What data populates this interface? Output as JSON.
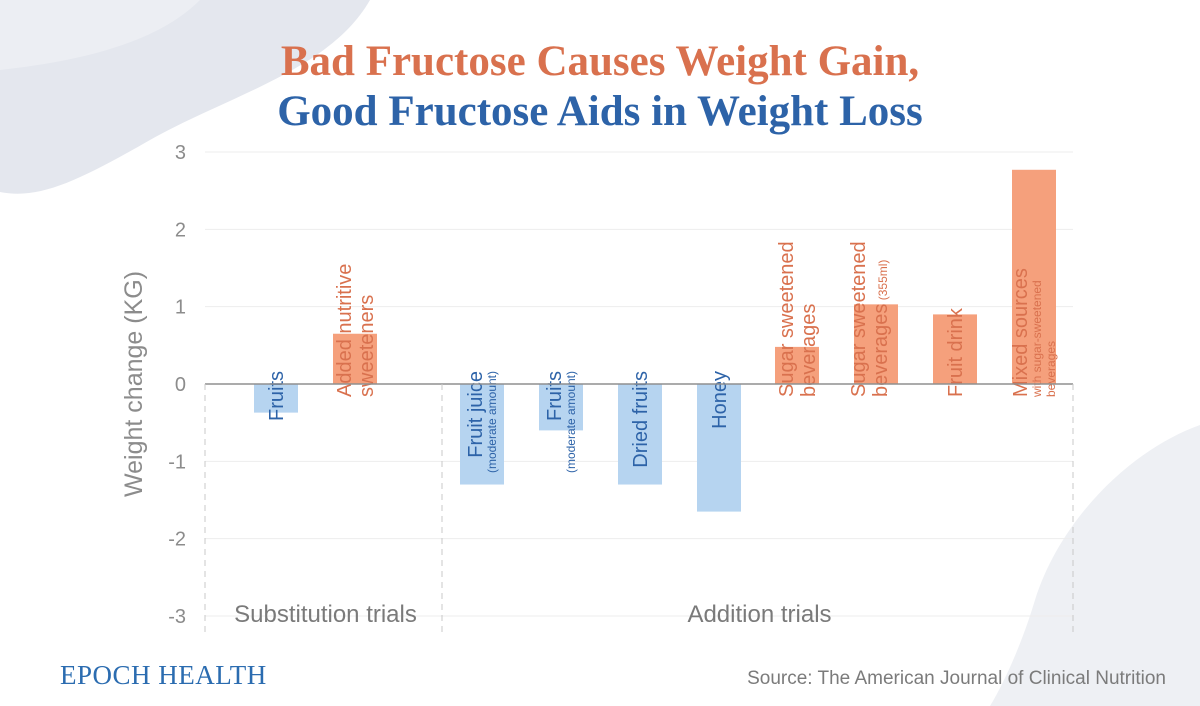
{
  "header": {
    "title_line1": "Bad Fructose Causes Weight Gain,",
    "title_line2": "Good Fructose Aids in Weight Loss"
  },
  "footer": {
    "brand": "EPOCH HEALTH",
    "source": "Source: The American Journal of Clinical Nutrition"
  },
  "colors": {
    "bad": "#f5a07c",
    "good": "#b6d4f0",
    "bad_text": "#d9714e",
    "good_text": "#2d63a8",
    "axis_text": "#8c8c8c"
  },
  "chart_data": {
    "type": "bar",
    "title": "Bad Fructose Causes Weight Gain, Good Fructose Aids in Weight Loss",
    "ylabel": "Weight change (KG)",
    "ylim": [
      -3,
      3
    ],
    "yticks": [
      3,
      2,
      1,
      0,
      -1,
      -2,
      -3
    ],
    "grid": true,
    "groups": [
      {
        "name": "Substitution trials",
        "count": 2
      },
      {
        "name": "Addition trials",
        "count": 8
      }
    ],
    "bars": [
      {
        "label": "Fruits",
        "sub": "",
        "value": -0.37,
        "kind": "good"
      },
      {
        "label": "Added nutritive|sweeteners",
        "sub": "",
        "value": 0.65,
        "kind": "bad"
      },
      {
        "label": "Fruit juice",
        "sub": "(moderate amount)",
        "value": -1.3,
        "kind": "good"
      },
      {
        "label": "Fruits",
        "sub": "(moderate amount)",
        "value": -0.6,
        "kind": "good"
      },
      {
        "label": "Dried fruits",
        "sub": "",
        "value": -1.3,
        "kind": "good"
      },
      {
        "label": "Honey",
        "sub": "",
        "value": -1.65,
        "kind": "good"
      },
      {
        "label": "Sugar sweetened|beverages",
        "sub": "",
        "value": 0.48,
        "kind": "bad"
      },
      {
        "label": "Sugar sweetened|beverages",
        "sub": "(355ml)",
        "value": 1.03,
        "kind": "bad"
      },
      {
        "label": "Fruit drink",
        "sub": "",
        "value": 0.9,
        "kind": "bad"
      },
      {
        "label": "Mixed sources",
        "sub": "with sugar-sweetened|beverages",
        "value": 2.77,
        "kind": "bad"
      }
    ]
  }
}
